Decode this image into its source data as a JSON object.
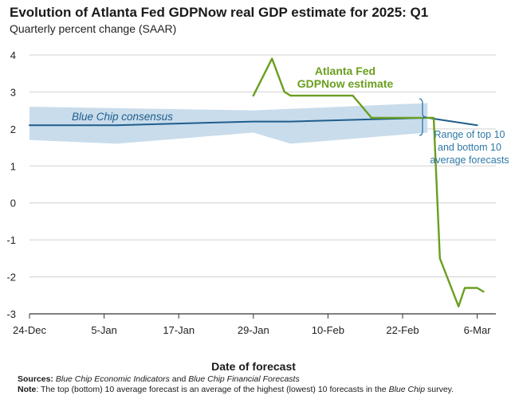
{
  "title": "Evolution of Atlanta Fed GDPNow real GDP estimate for 2025: Q1",
  "subtitle": "Quarterly percent change (SAAR)",
  "colors": {
    "gdpnow": "#6a9e1f",
    "consensus": "#1f5d8c",
    "band": "#c8dcec",
    "grid": "#d0d0d0",
    "range_text": "#2f78a6"
  },
  "footer": {
    "sources_label": "Sources:",
    "sources_1": "Blue Chip Economic Indicators",
    "sources_and": " and ",
    "sources_2": "Blue Chip Financial Forecasts",
    "note_label": "Note",
    "note_text": ": The top (bottom) 10 average forecast is an average of the highest (lowest) 10 forecasts in the ",
    "note_italic": "Blue Chip",
    "note_end": " survey."
  },
  "chart_data": {
    "type": "line",
    "xlabel": "Date of forecast",
    "ylabel": "",
    "xlim": [
      "2024-12-24",
      "2025-03-09"
    ],
    "ylim": [
      -3,
      4
    ],
    "x_ticks": [
      "24-Dec",
      "5-Jan",
      "17-Jan",
      "29-Jan",
      "10-Feb",
      "22-Feb",
      "6-Mar"
    ],
    "y_ticks": [
      "4",
      "3",
      "2",
      "1",
      "0",
      "-1",
      "-2",
      "-3"
    ],
    "grid": "horizontal",
    "annotations": {
      "gdpnow_line1": "Atlanta Fed",
      "gdpnow_line2": "GDPNow estimate",
      "consensus": "Blue Chip consensus",
      "range_line1": "Range of top 10",
      "range_line2": "and bottom 10",
      "range_line3": "average forecasts"
    },
    "series": [
      {
        "key": "gdpnow",
        "x": [
          "2025-01-29",
          "2025-02-01",
          "2025-02-03",
          "2025-02-04",
          "2025-02-07",
          "2025-02-14",
          "2025-02-17",
          "2025-02-19",
          "2025-02-24",
          "2025-02-27",
          "2025-02-28",
          "2025-03-03",
          "2025-03-04",
          "2025-03-06",
          "2025-03-07"
        ],
        "values": [
          2.9,
          3.9,
          3.0,
          2.9,
          2.9,
          2.9,
          2.3,
          2.3,
          2.3,
          2.3,
          -1.5,
          -2.8,
          -2.3,
          -2.3,
          -2.4
        ]
      },
      {
        "key": "consensus",
        "x": [
          "2024-12-24",
          "2025-01-07",
          "2025-01-29",
          "2025-02-04",
          "2025-02-26",
          "2025-03-06"
        ],
        "values": [
          2.1,
          2.1,
          2.2,
          2.2,
          2.3,
          2.1
        ]
      },
      {
        "key": "top10",
        "x": [
          "2024-12-24",
          "2025-01-29",
          "2025-02-26"
        ],
        "values": [
          2.6,
          2.5,
          2.7
        ]
      },
      {
        "key": "bottom10",
        "x": [
          "2024-12-24",
          "2025-01-07",
          "2025-01-29",
          "2025-02-04",
          "2025-02-26"
        ],
        "values": [
          1.7,
          1.6,
          1.9,
          1.6,
          1.9
        ]
      }
    ]
  }
}
